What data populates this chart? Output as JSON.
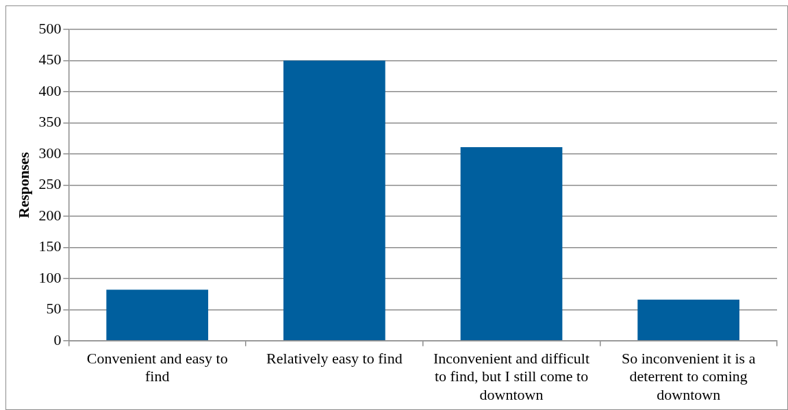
{
  "chart_data": {
    "type": "bar",
    "ylabel": "Responses",
    "categories": [
      "Convenient and easy to find",
      "Relatively easy to find",
      "Inconvenient and difficult to find, but I still come to downtown",
      "So inconvenient it is a deterrent to coming downtown"
    ],
    "values": [
      82,
      450,
      311,
      66
    ],
    "color": "#005f9e",
    "ylim": [
      0,
      500
    ],
    "yticks": [
      0,
      50,
      100,
      150,
      200,
      250,
      300,
      350,
      400,
      450,
      500
    ],
    "grid": "y"
  }
}
